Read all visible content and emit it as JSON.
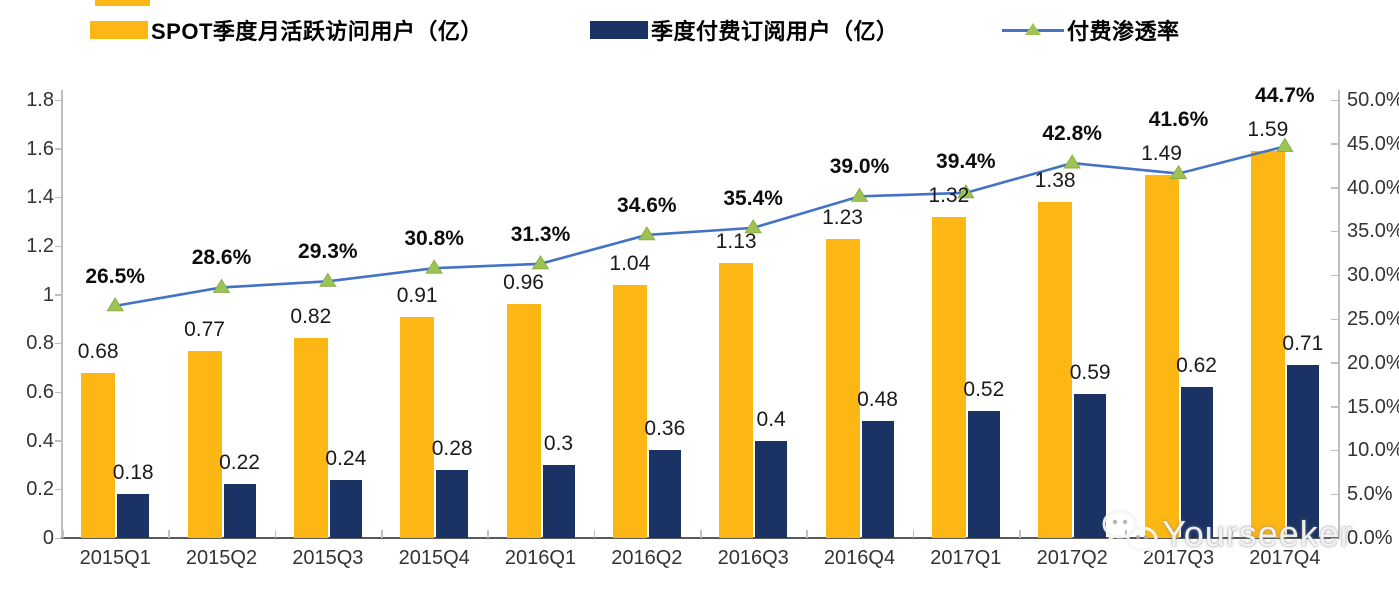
{
  "legend": {
    "items": [
      {
        "label": "SPOT季度月活跃访问用户（亿）",
        "color": "#FCB714",
        "type": "bar"
      },
      {
        "label": "季度付费订阅用户（亿）",
        "color": "#1B3264",
        "type": "bar"
      },
      {
        "label": "付费渗透率",
        "color": "#4472C4",
        "marker_color": "#9CC353",
        "marker": "triangle",
        "type": "line"
      }
    ]
  },
  "watermark": {
    "text": "Yourseeker",
    "icon": "wechat-icon"
  },
  "chart_data": {
    "type": "bar+line combo",
    "categories": [
      "2015Q1",
      "2015Q2",
      "2015Q3",
      "2015Q4",
      "2016Q1",
      "2016Q2",
      "2016Q3",
      "2016Q4",
      "2017Q1",
      "2017Q2",
      "2017Q3",
      "2017Q4"
    ],
    "series": [
      {
        "name": "SPOT季度月活跃访问用户（亿）",
        "chart_type": "bar",
        "axis": "left",
        "color": "#FCB714",
        "values": [
          0.68,
          0.77,
          0.82,
          0.91,
          0.96,
          1.04,
          1.13,
          1.23,
          1.32,
          1.38,
          1.49,
          1.59
        ],
        "labels": [
          "0.68",
          "0.77",
          "0.82",
          "0.91",
          "0.96",
          "1.04",
          "1.13",
          "1.23",
          "1.32",
          "1.38",
          "1.49",
          "1.59"
        ]
      },
      {
        "name": "季度付费订阅用户（亿）",
        "chart_type": "bar",
        "axis": "left",
        "color": "#1B3264",
        "values": [
          0.18,
          0.22,
          0.24,
          0.28,
          0.3,
          0.36,
          0.4,
          0.48,
          0.52,
          0.59,
          0.62,
          0.71
        ],
        "labels": [
          "0.18",
          "0.22",
          "0.24",
          "0.28",
          "0.3",
          "0.36",
          "0.4",
          "0.48",
          "0.52",
          "0.59",
          "0.62",
          "0.71"
        ]
      },
      {
        "name": "付费渗透率",
        "chart_type": "line",
        "axis": "right",
        "color": "#4472C4",
        "marker": "triangle",
        "marker_color": "#9CC353",
        "values": [
          26.5,
          28.6,
          29.3,
          30.8,
          31.3,
          34.6,
          35.4,
          39.0,
          39.4,
          42.8,
          41.6,
          44.7
        ],
        "labels": [
          "26.5%",
          "28.6%",
          "29.3%",
          "30.8%",
          "31.3%",
          "34.6%",
          "35.4%",
          "39.0%",
          "39.4%",
          "42.8%",
          "41.6%",
          "44.7%"
        ]
      }
    ],
    "left_axis": {
      "min": 0,
      "max": 1.8,
      "step": 0.2,
      "tick_labels": [
        "0",
        "0.2",
        "0.4",
        "0.6",
        "0.8",
        "1",
        "1.2",
        "1.4",
        "1.6",
        "1.8"
      ]
    },
    "right_axis": {
      "min": 0,
      "max": 50,
      "step": 5,
      "tick_labels": [
        "0.0%",
        "5.0%",
        "10.0%",
        "15.0%",
        "20.0%",
        "25.0%",
        "30.0%",
        "35.0%",
        "40.0%",
        "45.0%",
        "50.0%"
      ]
    },
    "grid": false,
    "legend_position": "top",
    "title": ""
  }
}
